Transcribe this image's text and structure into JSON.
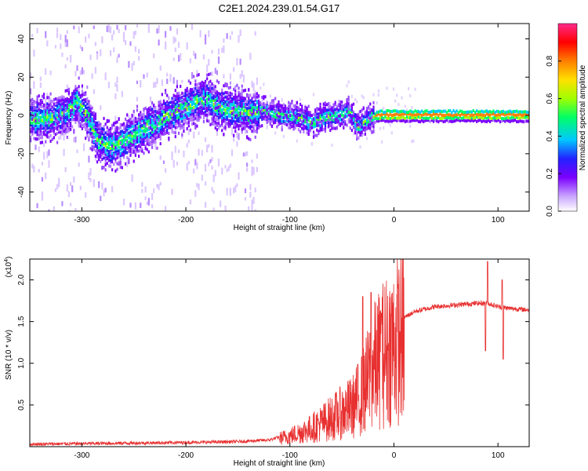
{
  "title": "C2E1.2024.239.01.54.G17",
  "chart_data": [
    {
      "type": "heatmap",
      "xlabel": "Height of straight line (km)",
      "ylabel": "Frequency (Hz)",
      "xlim": [
        -350,
        130
      ],
      "ylim": [
        -50,
        48
      ],
      "xticks": [
        -300,
        -200,
        -100,
        0,
        100
      ],
      "yticks": [
        -40,
        -20,
        0,
        20,
        40
      ],
      "colorbar": {
        "label": "Normalized spectral amplitude",
        "range": [
          0,
          1
        ],
        "ticks": [
          "0.0",
          "0.2",
          "0.4",
          "0.6",
          "0.8"
        ],
        "colors": [
          "#ffffff",
          "#b57cff",
          "#7b00ff",
          "#2222ff",
          "#00c8ff",
          "#00ff66",
          "#a0ff00",
          "#ffe000",
          "#ff7f00",
          "#ff0000",
          "#ff2a8a"
        ]
      },
      "ridge": {
        "x": [
          -350,
          -330,
          -315,
          -305,
          -295,
          -285,
          -275,
          -265,
          -250,
          -230,
          -210,
          -190,
          -180,
          -170,
          -155,
          -140,
          -125,
          -110,
          -95,
          -80,
          -65,
          -55,
          -45,
          -35,
          -25,
          -15,
          0,
          50,
          100,
          130
        ],
        "y": [
          -1,
          -1,
          2,
          8,
          0,
          -12,
          -16,
          -14,
          -9,
          -3,
          3,
          8,
          10,
          5,
          3,
          2,
          3,
          1,
          0,
          -3,
          0,
          0,
          4,
          -5,
          -1,
          1,
          1,
          1,
          1,
          1
        ]
      }
    },
    {
      "type": "line",
      "xlabel": "Height of straight line (km)",
      "ylabel": "SNR (10 * v/v)",
      "multiplier": "(x10",
      "multiplier_exp": "4",
      "multiplier_close": ")",
      "xlim": [
        -350,
        130
      ],
      "ylim": [
        0,
        2.25
      ],
      "xticks": [
        -300,
        -200,
        -100,
        0,
        100
      ],
      "yticks": [
        "0.5",
        "1.0",
        "1.5",
        "2.0"
      ],
      "color": "#e83030",
      "envelope": {
        "x": [
          -350,
          -200,
          -150,
          -120,
          -100,
          -80,
          -60,
          -40,
          -30,
          -20,
          -10,
          0,
          10,
          20,
          40,
          60,
          80,
          90,
          100,
          110,
          130
        ],
        "y": [
          0.03,
          0.05,
          0.06,
          0.08,
          0.15,
          0.25,
          0.4,
          0.55,
          0.75,
          1.1,
          1.3,
          1.45,
          1.55,
          1.62,
          1.68,
          1.7,
          1.72,
          1.72,
          1.68,
          1.66,
          1.64
        ]
      },
      "spikes": [
        {
          "x": -30,
          "y": 1.8
        },
        {
          "x": -22,
          "y": 1.85
        },
        {
          "x": -12,
          "y": 1.6
        },
        {
          "x": 90,
          "y": 2.22
        },
        {
          "x": 88,
          "y": 1.15
        },
        {
          "x": 105,
          "y": 1.05
        },
        {
          "x": 104,
          "y": 2.0
        }
      ]
    }
  ]
}
